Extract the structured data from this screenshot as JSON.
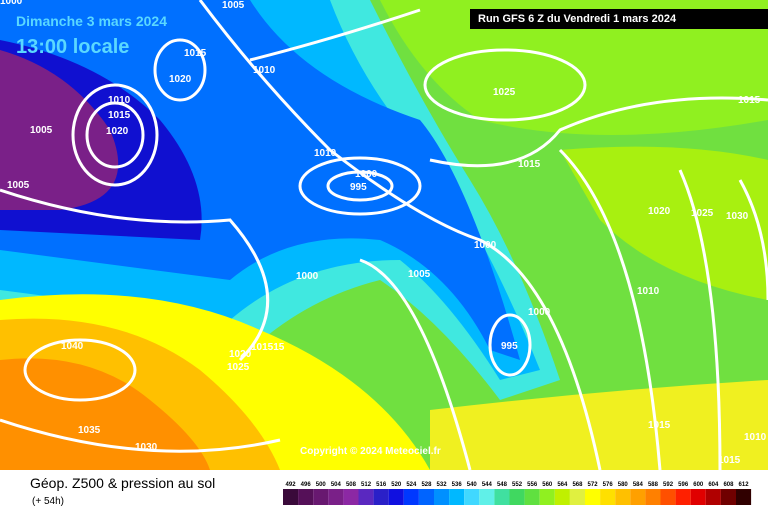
{
  "header": {
    "title": "Dimanche 3 mars 2024",
    "time": "13:00 locale",
    "run": "Run GFS 6 Z du Vendredi 1 mars 2024"
  },
  "footer": {
    "field": "Géop. Z500 & pression au sol",
    "lead": "(+ 54h)",
    "copyright": "Copyright © 2024 Meteociel.fr"
  },
  "isobar_labels": [
    1005,
    1015,
    1020,
    1010,
    1025,
    1015,
    1010,
    1015,
    1020,
    1005,
    1010,
    1000,
    995,
    1015,
    1005,
    1020,
    1025,
    1030,
    1000,
    1005,
    1000,
    1010,
    1000,
    995,
    1040,
    "101515",
    1020,
    1025,
    1035,
    1030,
    1015,
    1015,
    1010,
    1000
  ],
  "colorbar": {
    "labels": [
      492,
      496,
      500,
      504,
      508,
      512,
      516,
      520,
      524,
      528,
      532,
      536,
      540,
      544,
      548,
      552,
      556,
      560,
      564,
      568,
      572,
      576,
      580,
      584,
      588,
      592,
      596,
      600,
      604,
      608,
      612
    ],
    "colors": [
      "#3a0a3a",
      "#551058",
      "#681870",
      "#7a2088",
      "#8c28a4",
      "#5a28c0",
      "#2a20c8",
      "#1010e0",
      "#0038ff",
      "#0064ff",
      "#0090ff",
      "#00b8ff",
      "#40d8ff",
      "#60f0e8",
      "#40e0a0",
      "#40d860",
      "#60e040",
      "#90f020",
      "#c0f000",
      "#e0f040",
      "#ffff00",
      "#ffe000",
      "#ffc000",
      "#ffa000",
      "#ff8000",
      "#ff5000",
      "#ff2000",
      "#e00000",
      "#b00000",
      "#700000",
      "#300000"
    ]
  }
}
